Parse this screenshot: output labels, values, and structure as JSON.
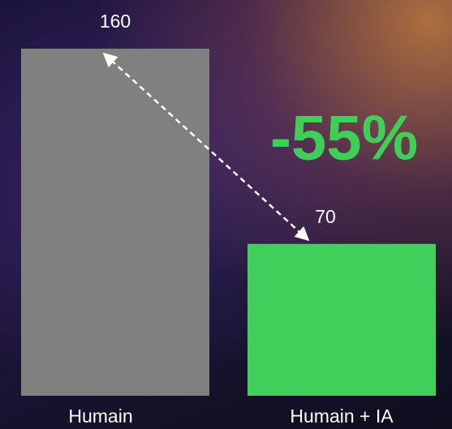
{
  "chart_data": {
    "type": "bar",
    "categories": [
      "Humain",
      "Humain + IA"
    ],
    "values": [
      160,
      70
    ],
    "colors": [
      "#808080",
      "#40cf5a"
    ],
    "ylim": [
      0,
      160
    ],
    "annotation": "-55%"
  }
}
